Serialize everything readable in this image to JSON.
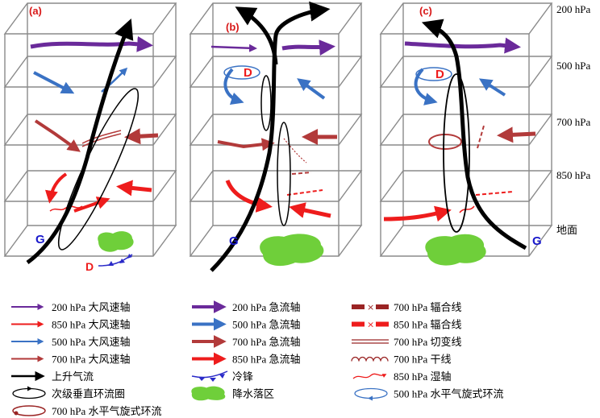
{
  "panels": [
    {
      "label": "(a)",
      "low": "D",
      "high": "G"
    },
    {
      "label": "(b)",
      "low": "D",
      "high": "G"
    },
    {
      "label": "(c)",
      "low": "D",
      "high": "G"
    }
  ],
  "levels": [
    "200 hPa",
    "500 hPa",
    "700 hPa",
    "850 hPa",
    "地面"
  ],
  "legend": [
    {
      "label": "200 hPa 大风速轴",
      "symbol": "arrow-thin-purple"
    },
    {
      "label": "200 hPa 急流轴",
      "symbol": "arrow-thick-purple"
    },
    {
      "label": "700 hPa 辐合线",
      "symbol": "convergence-darkred"
    },
    {
      "label": "850 hPa 大风速轴",
      "symbol": "arrow-thin-red"
    },
    {
      "label": "500 hPa 急流轴",
      "symbol": "arrow-thick-blue"
    },
    {
      "label": "850 hPa 辐合线",
      "symbol": "convergence-red"
    },
    {
      "label": "500 hPa 大风速轴",
      "symbol": "arrow-thin-blue"
    },
    {
      "label": "700 hPa 急流轴",
      "symbol": "arrow-thick-darkred"
    },
    {
      "label": "700 hPa 切变线",
      "symbol": "shear-line"
    },
    {
      "label": "700 hPa 大风速轴",
      "symbol": "arrow-thin-darkred"
    },
    {
      "label": "850 hPa 急流轴",
      "symbol": "arrow-thick-red"
    },
    {
      "label": "700 hPa 干线",
      "symbol": "dry-line"
    },
    {
      "label": "上升气流",
      "symbol": "arrow-black"
    },
    {
      "label": "冷锋",
      "symbol": "cold-front"
    },
    {
      "label": "850 hPa 湿轴",
      "symbol": "moist-axis"
    },
    {
      "label": "次级垂直环流圈",
      "symbol": "vertical-circulation"
    },
    {
      "label": "降水落区",
      "symbol": "precip-area"
    },
    {
      "label": "500 hPa 水平气旋式环流",
      "symbol": "cyclonic-500"
    },
    {
      "label": "700 hPa 水平气旋式环流",
      "symbol": "cyclonic-700"
    }
  ],
  "colors": {
    "purple": "#6a2a9a",
    "blue": "#3a72c4",
    "darkred": "#b23a3a",
    "red": "#ee1c1c",
    "black": "#000000",
    "green": "#6fcf3a",
    "frame": "#8a8a8a"
  }
}
